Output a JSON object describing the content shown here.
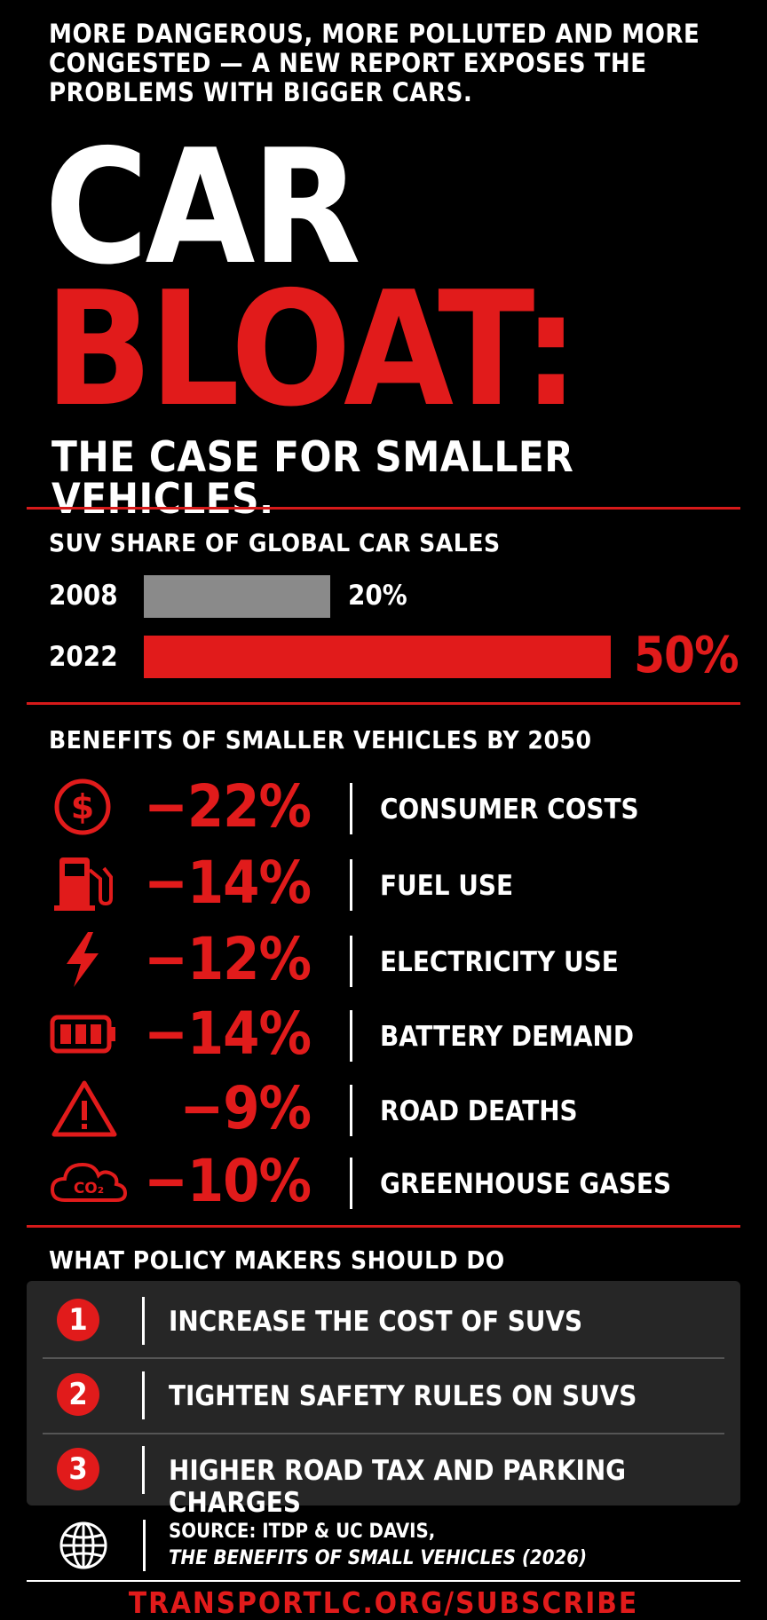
{
  "header": {
    "intro": "MORE DANGEROUS, MORE POLLUTED AND MORE CONGESTED — A NEW REPORT EXPOSES THE PROBLEMS WITH BIGGER CARS.",
    "title_line1": "CAR",
    "title_line2": "BLOAT:",
    "subtitle": "THE CASE FOR SMALLER VEHICLES."
  },
  "suv_share": {
    "heading": "SUV SHARE OF GLOBAL CAR SALES",
    "rows": [
      {
        "year": "2008",
        "value": 20,
        "label": "20%",
        "color": "#8a8a8a"
      },
      {
        "year": "2022",
        "value": 50,
        "label": "50%",
        "color": "#e11b1b"
      }
    ]
  },
  "benefits": {
    "heading": "BENEFITS OF SMALLER VEHICLES BY 2050",
    "items": [
      {
        "icon": "dollar-icon",
        "value": "−22%",
        "label": "CONSUMER COSTS"
      },
      {
        "icon": "fuel-pump-icon",
        "value": "−14%",
        "label": "FUEL USE"
      },
      {
        "icon": "lightning-icon",
        "value": "−12%",
        "label": "ELECTRICITY USE"
      },
      {
        "icon": "battery-icon",
        "value": "−14%",
        "label": "BATTERY DEMAND"
      },
      {
        "icon": "warning-icon",
        "value": "−9%",
        "label": "ROAD DEATHS"
      },
      {
        "icon": "co2-cloud-icon",
        "value": "−10%",
        "label": "GREENHOUSE GASES",
        "icon_text": "CO₂"
      }
    ]
  },
  "policy": {
    "heading": "WHAT POLICY MAKERS SHOULD DO",
    "items": [
      {
        "num": "1",
        "label": "INCREASE THE COST OF SUVS"
      },
      {
        "num": "2",
        "label": "TIGHTEN SAFETY RULES ON SUVS"
      },
      {
        "num": "3",
        "label": "HIGHER ROAD TAX AND PARKING CHARGES"
      }
    ]
  },
  "source": {
    "line1": "SOURCE: ITDP & UC DAVIS,",
    "line2": "THE BENEFITS OF SMALL VEHICLES (2026)"
  },
  "footer": {
    "url": "TRANSPORTLC.ORG/SUBSCRIBE"
  },
  "colors": {
    "accent": "#e11b1b",
    "background": "#000000",
    "panel": "#262626"
  }
}
